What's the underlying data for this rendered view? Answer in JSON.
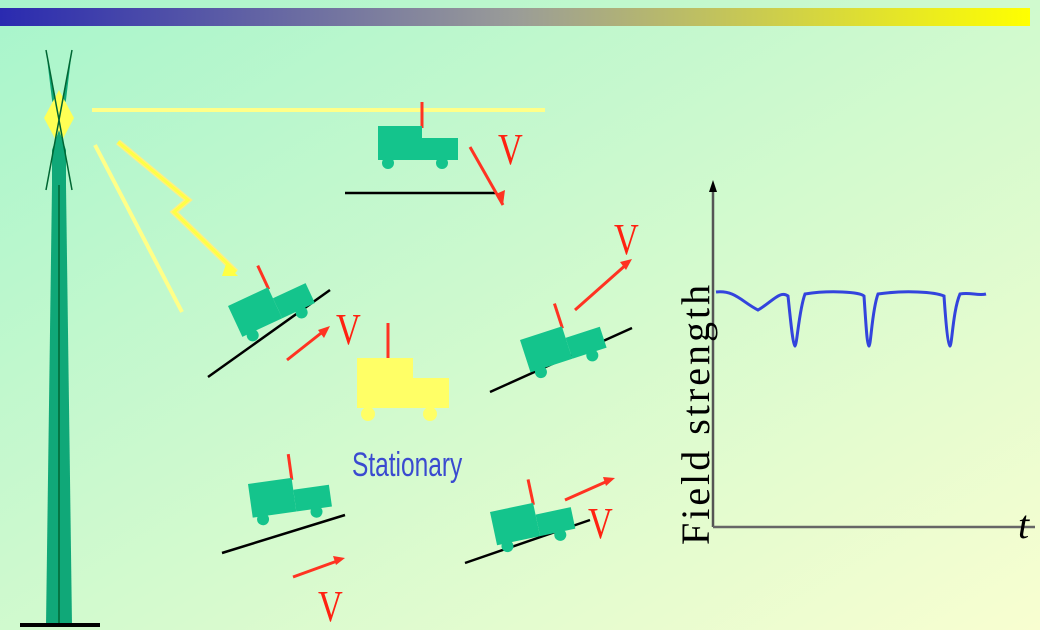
{
  "colors": {
    "background_top_left": "#a8f5cc",
    "background_bottom_right": "#f8fed0",
    "header_bar_left": "#2a2ab0",
    "header_bar_right": "#ffff00",
    "vehicle_moving": "#14c48c",
    "vehicle_stationary": "#ffff66",
    "velocity_arrow": "#ff3322",
    "label_text": "#ff2211",
    "stationary_text": "#3a4ad0",
    "signal_curve": "#3344dd",
    "tower": "#10a878",
    "radio_wave": "#ffff88"
  },
  "icons": [
    "transmitter-tower-icon",
    "lightning-bolt-icon",
    "vehicle-icon"
  ],
  "labels": {
    "velocity": "V",
    "stationary": "Stationary"
  },
  "chart": {
    "ylabel": "Field strength",
    "xlabel": "t"
  }
}
